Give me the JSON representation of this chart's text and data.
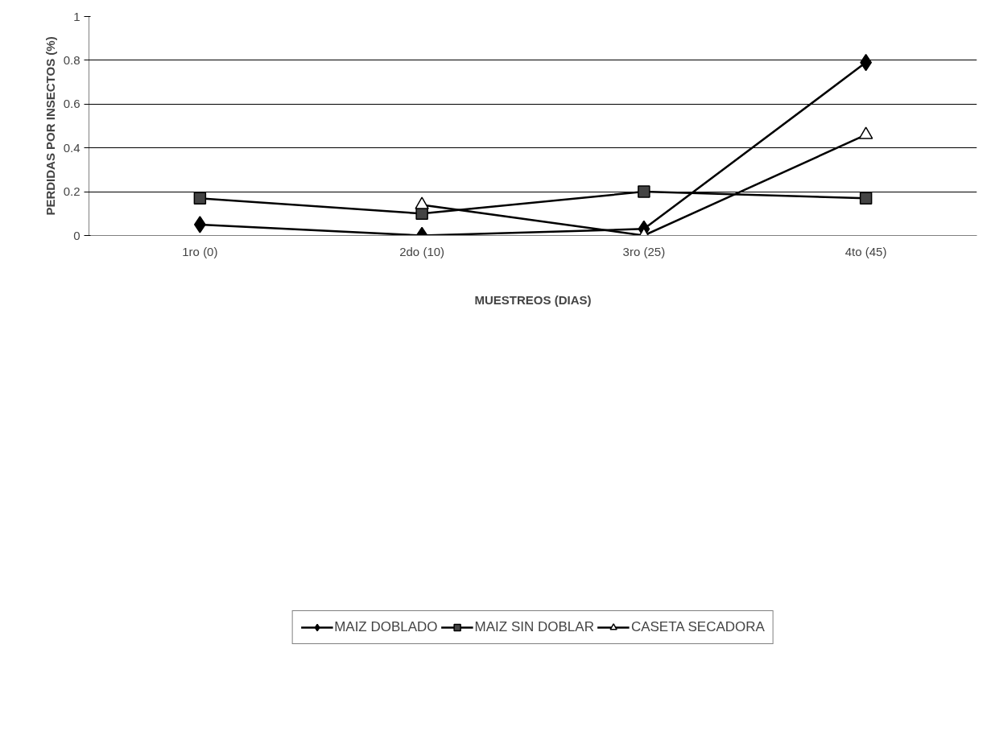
{
  "chart_data": {
    "type": "line",
    "xlabel": "MUESTREOS (DIAS)",
    "ylabel": "PERDIDAS POR INSECTOS (%)",
    "categories": [
      "1ro (0)",
      "2do (10)",
      "3ro (25)",
      "4to (45)"
    ],
    "ylim": [
      0,
      1
    ],
    "yticks": [
      0,
      0.2,
      0.4,
      0.6,
      0.8,
      1
    ],
    "grid": "y",
    "legend": "bottom",
    "series": [
      {
        "name": "MAIZ DOBLADO",
        "color": "#000000",
        "marker": "diamond",
        "values": [
          0.05,
          0,
          0.03,
          0.79
        ]
      },
      {
        "name": "MAIZ SIN DOBLAR",
        "color": "#000000",
        "marker": "square",
        "values": [
          0.17,
          0.1,
          0.2,
          0.17
        ]
      },
      {
        "name": "CASETA SECADORA",
        "color": "#000000",
        "marker": "triangle",
        "values": [
          null,
          0.14,
          0,
          0.46
        ]
      }
    ]
  }
}
